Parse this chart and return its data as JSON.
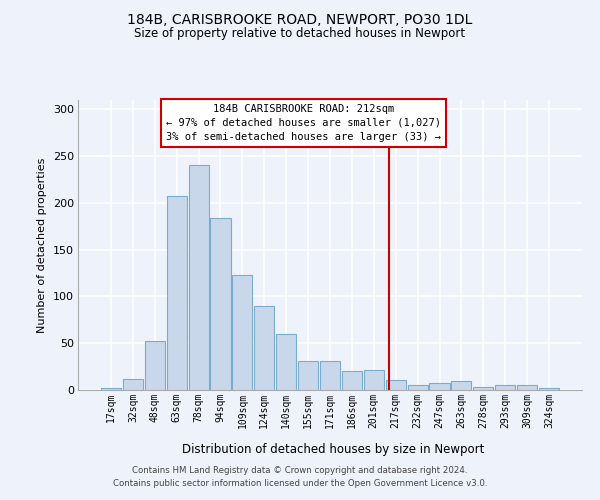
{
  "title_line1": "184B, CARISBROOKE ROAD, NEWPORT, PO30 1DL",
  "title_line2": "Size of property relative to detached houses in Newport",
  "xlabel": "Distribution of detached houses by size in Newport",
  "ylabel": "Number of detached properties",
  "bin_labels": [
    "17sqm",
    "32sqm",
    "48sqm",
    "63sqm",
    "78sqm",
    "94sqm",
    "109sqm",
    "124sqm",
    "140sqm",
    "155sqm",
    "171sqm",
    "186sqm",
    "201sqm",
    "217sqm",
    "232sqm",
    "247sqm",
    "263sqm",
    "278sqm",
    "293sqm",
    "309sqm",
    "324sqm"
  ],
  "bar_heights": [
    2,
    12,
    52,
    207,
    240,
    184,
    123,
    90,
    60,
    31,
    31,
    20,
    21,
    11,
    5,
    7,
    10,
    3,
    5,
    5,
    2
  ],
  "bar_color": "#c8d8ea",
  "bar_edge_color": "#7aaccf",
  "annotation_text": "184B CARISBROOKE ROAD: 212sqm\n← 97% of detached houses are smaller (1,027)\n3% of semi-detached houses are larger (33) →",
  "annotation_box_color": "#ffffff",
  "annotation_box_edge": "#cc0000",
  "vline_color": "#cc0000",
  "background_color": "#eef2fa",
  "grid_color": "#ffffff",
  "ylim": [
    0,
    310
  ],
  "yticks": [
    0,
    50,
    100,
    150,
    200,
    250,
    300
  ],
  "footer_line1": "Contains HM Land Registry data © Crown copyright and database right 2024.",
  "footer_line2": "Contains public sector information licensed under the Open Government Licence v3.0."
}
